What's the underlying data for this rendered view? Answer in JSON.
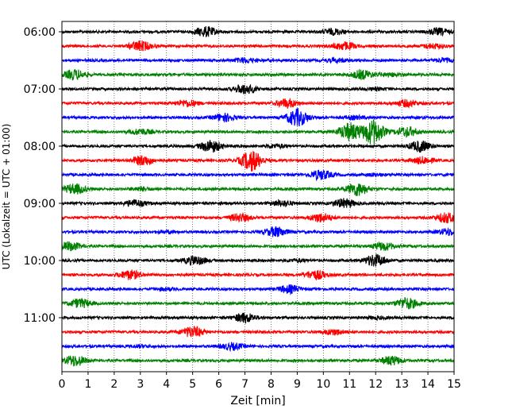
{
  "chart_data": {
    "type": "line",
    "title": "",
    "xlabel": "Zeit  [min]",
    "ylabel": "UTC (Lokalzeit = UTC + 01:00)",
    "xlim": [
      0,
      15
    ],
    "xticks": [
      "0",
      "1",
      "2",
      "3",
      "4",
      "5",
      "6",
      "7",
      "8",
      "9",
      "10",
      "11",
      "12",
      "13",
      "14",
      "15"
    ],
    "yticks": [
      "06:00",
      "07:00",
      "08:00",
      "09:00",
      "10:00",
      "11:00"
    ],
    "grid": "vertical dotted at each minute",
    "trace_interval_minutes": 15,
    "trace_start": "06:00",
    "trace_count": 24,
    "colors_cycle": [
      "#000000",
      "#ff0000",
      "#0000ff",
      "#008000"
    ],
    "series": [
      {
        "start": "06:00",
        "events": [
          [
            5.5,
            0.9
          ],
          [
            10.4,
            0.5
          ],
          [
            14.4,
            0.6
          ]
        ]
      },
      {
        "start": "06:15",
        "events": [
          [
            3.0,
            0.9
          ],
          [
            10.8,
            0.7
          ],
          [
            14.2,
            0.4
          ]
        ]
      },
      {
        "start": "06:30",
        "events": [
          [
            7.0,
            0.4
          ],
          [
            10.5,
            0.3
          ],
          [
            14.6,
            0.3
          ]
        ]
      },
      {
        "start": "06:45",
        "events": [
          [
            0.5,
            0.9
          ],
          [
            11.5,
            0.8
          ],
          [
            12.5,
            0.3
          ]
        ]
      },
      {
        "start": "07:00",
        "events": [
          [
            7.0,
            0.9
          ],
          [
            12.0,
            0.2
          ]
        ]
      },
      {
        "start": "07:15",
        "events": [
          [
            4.8,
            0.6
          ],
          [
            8.6,
            0.8
          ],
          [
            13.2,
            0.6
          ]
        ]
      },
      {
        "start": "07:30",
        "events": [
          [
            6.2,
            0.7
          ],
          [
            9.0,
            1.6
          ],
          [
            11.2,
            0.3
          ]
        ]
      },
      {
        "start": "07:45",
        "events": [
          [
            11.0,
            1.6
          ],
          [
            11.9,
            2.3
          ],
          [
            13.2,
            0.9
          ],
          [
            3.0,
            0.5
          ]
        ]
      },
      {
        "start": "08:00",
        "events": [
          [
            5.7,
            1.1
          ],
          [
            8.2,
            0.3
          ],
          [
            13.7,
            1.0
          ]
        ]
      },
      {
        "start": "08:15",
        "events": [
          [
            3.1,
            0.9
          ],
          [
            7.25,
            1.9
          ],
          [
            13.8,
            0.6
          ]
        ]
      },
      {
        "start": "08:30",
        "events": [
          [
            9.9,
            0.9
          ],
          [
            12.0,
            0.2
          ]
        ]
      },
      {
        "start": "08:45",
        "events": [
          [
            0.5,
            0.9
          ],
          [
            11.3,
            1.2
          ],
          [
            3.0,
            0.3
          ]
        ]
      },
      {
        "start": "09:00",
        "events": [
          [
            2.8,
            0.6
          ],
          [
            8.4,
            0.5
          ],
          [
            10.8,
            0.8
          ]
        ]
      },
      {
        "start": "09:15",
        "events": [
          [
            6.8,
            0.7
          ],
          [
            9.9,
            0.8
          ],
          [
            14.7,
            0.9
          ]
        ]
      },
      {
        "start": "09:30",
        "events": [
          [
            8.2,
            0.9
          ],
          [
            14.8,
            0.6
          ],
          [
            4.0,
            0.2
          ]
        ]
      },
      {
        "start": "09:45",
        "events": [
          [
            0.3,
            0.8
          ],
          [
            12.3,
            0.7
          ]
        ]
      },
      {
        "start": "10:00",
        "events": [
          [
            5.1,
            0.8
          ],
          [
            12.0,
            1.1
          ],
          [
            9.0,
            0.2
          ]
        ]
      },
      {
        "start": "10:15",
        "events": [
          [
            2.6,
            0.8
          ],
          [
            9.7,
            0.8
          ]
        ]
      },
      {
        "start": "10:30",
        "events": [
          [
            8.7,
            0.7
          ],
          [
            4.0,
            0.2
          ]
        ]
      },
      {
        "start": "10:45",
        "events": [
          [
            0.7,
            0.8
          ],
          [
            13.2,
            1.0
          ]
        ]
      },
      {
        "start": "11:00",
        "events": [
          [
            7.0,
            0.9
          ],
          [
            12.0,
            0.2
          ]
        ]
      },
      {
        "start": "11:15",
        "events": [
          [
            5.0,
            1.0
          ],
          [
            10.4,
            0.5
          ]
        ]
      },
      {
        "start": "11:30",
        "events": [
          [
            6.5,
            0.6
          ],
          [
            3.0,
            0.2
          ]
        ]
      },
      {
        "start": "11:45",
        "events": [
          [
            0.5,
            1.0
          ],
          [
            12.6,
            0.8
          ]
        ]
      }
    ]
  }
}
